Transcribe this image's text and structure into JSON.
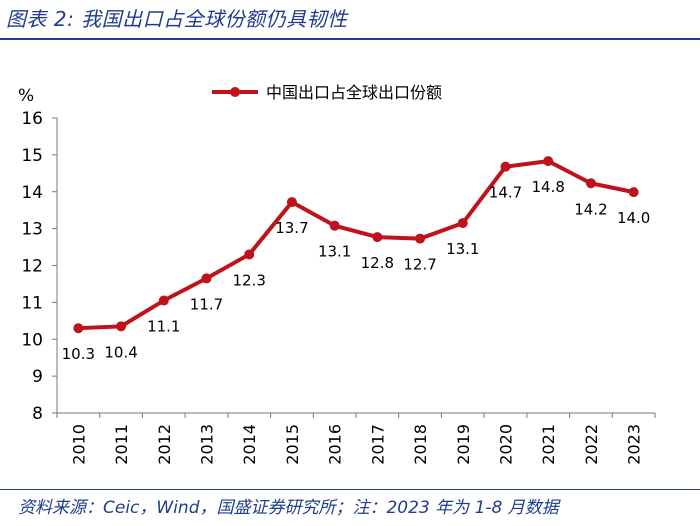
{
  "figure": {
    "title": "图表 2:  我国出口占全球份额仍具韧性",
    "source": "资料来源：Ceic，Wind，国盛证券研究所；注：2023 年为 1-8 月数据"
  },
  "chart_data": {
    "type": "line",
    "title": "",
    "xlabel": "",
    "ylabel": "%",
    "ylim": [
      8,
      16
    ],
    "yticks": [
      8,
      9,
      10,
      11,
      12,
      13,
      14,
      15,
      16
    ],
    "categories": [
      "2010",
      "2011",
      "2012",
      "2013",
      "2014",
      "2015",
      "2016",
      "2017",
      "2018",
      "2019",
      "2020",
      "2021",
      "2022",
      "2023"
    ],
    "series": [
      {
        "name": "中国出口占全球出口份额",
        "values": [
          10.3,
          10.35,
          11.05,
          11.65,
          12.3,
          13.72,
          13.08,
          12.77,
          12.73,
          13.15,
          14.68,
          14.83,
          14.23,
          13.99
        ],
        "labels": [
          "10.3",
          "10.4",
          "11.1",
          "11.7",
          "12.3",
          "13.7",
          "13.1",
          "12.8",
          "12.7",
          "13.1",
          "14.7",
          "14.8",
          "14.2",
          "14.0"
        ],
        "label_pos": [
          "below",
          "below",
          "below",
          "below",
          "below",
          "below",
          "below",
          "below",
          "below",
          "below",
          "below",
          "below",
          "below",
          "below"
        ],
        "color": "#c0121a"
      }
    ],
    "legend": "top-center",
    "grid": false
  }
}
